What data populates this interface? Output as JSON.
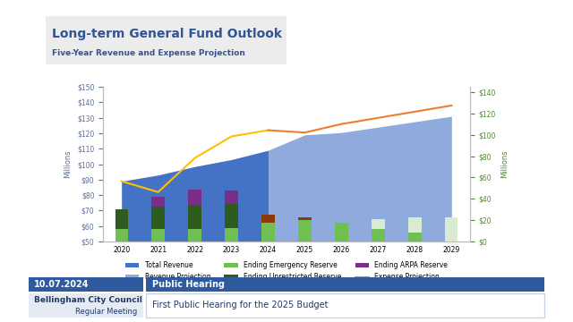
{
  "chart_data": {
    "type": "bar",
    "title": "Long-term General Fund Outlook",
    "subtitle": "Five-Year Revenue and Expense Projection",
    "y_label": "Millions",
    "y2_label": "Millions",
    "categories": [
      "2020",
      "2021",
      "2022",
      "2023",
      "2024",
      "2025",
      "2026",
      "2027",
      "2028",
      "2029"
    ],
    "ylim": [
      50,
      150
    ],
    "yticks": [
      {
        "value": 50,
        "label": "$50"
      },
      {
        "value": 60,
        "label": "$60"
      },
      {
        "value": 70,
        "label": "$70"
      },
      {
        "value": 80,
        "label": "$80"
      },
      {
        "value": 90,
        "label": "$90"
      },
      {
        "value": 100,
        "label": "$100"
      },
      {
        "value": 110,
        "label": "$110"
      },
      {
        "value": 120,
        "label": "$120"
      },
      {
        "value": 130,
        "label": "$130"
      },
      {
        "value": 140,
        "label": "$140"
      },
      {
        "value": 150,
        "label": "$150"
      }
    ],
    "y2lim": [
      0,
      145
    ],
    "y2ticks": [
      {
        "value": 0,
        "label": "$0"
      },
      {
        "value": 20,
        "label": "$20"
      },
      {
        "value": 40,
        "label": "$40"
      },
      {
        "value": 60,
        "label": "$60"
      },
      {
        "value": 80,
        "label": "$80"
      },
      {
        "value": 100,
        "label": "$100"
      },
      {
        "value": 120,
        "label": "$120"
      },
      {
        "value": 140,
        "label": "$140"
      }
    ],
    "stacked": true,
    "grid": false,
    "legend": "upper center",
    "series": [
      {
        "name": "Total Revenue",
        "type": "area",
        "color": "#4472c4",
        "values": [
          89,
          93,
          98.5,
          103,
          109,
          null,
          null,
          null,
          null,
          null
        ]
      },
      {
        "name": "Revenue Projection",
        "type": "area",
        "color": "#8faadc",
        "values": [
          null,
          null,
          null,
          null,
          109,
          119,
          120.5,
          124,
          127.5,
          131
        ]
      },
      {
        "type": "line",
        "color": "#ffc000",
        "values": [
          89,
          82,
          104,
          118,
          122,
          null,
          null,
          null,
          null,
          null
        ]
      },
      {
        "name": "Ending Emergency Reserve",
        "type": "bar",
        "axis": "y2",
        "color": "#70bf52",
        "values": [
          12,
          12,
          12,
          13,
          18,
          20,
          18,
          12,
          8,
          0
        ]
      },
      {
        "name": "Ending Unrestricted Reserve",
        "type": "bar",
        "axis": "y2",
        "colors": [
          "#2e5c1e",
          "#2e5c1e",
          "#2e5c1e",
          "#2e5c1e",
          "#8b3a0e",
          "#8b3a0e",
          "#2e5c1e",
          "#d9ecd2",
          "#d9ecd2",
          "#d9ecd2"
        ],
        "values": [
          18,
          21,
          22,
          22,
          7,
          3,
          0,
          9,
          15,
          23
        ]
      },
      {
        "name": "Ending ARPA Reserve",
        "type": "bar",
        "axis": "y2",
        "color": "#7b2d8b",
        "values": [
          0,
          9,
          15,
          13,
          0,
          0,
          0,
          0,
          0,
          0
        ]
      },
      {
        "name": "Expense Projection",
        "type": "line",
        "color": "#ed7d31",
        "values": [
          null,
          null,
          null,
          null,
          122,
          120.5,
          126,
          130,
          134,
          138
        ]
      }
    ]
  },
  "overlay": {
    "date": "10.07.2024",
    "body": "Bellingham City Council",
    "meeting": "Regular Meeting",
    "section": "Public Hearing",
    "item": "First Public Hearing for the 2025 Budget"
  }
}
